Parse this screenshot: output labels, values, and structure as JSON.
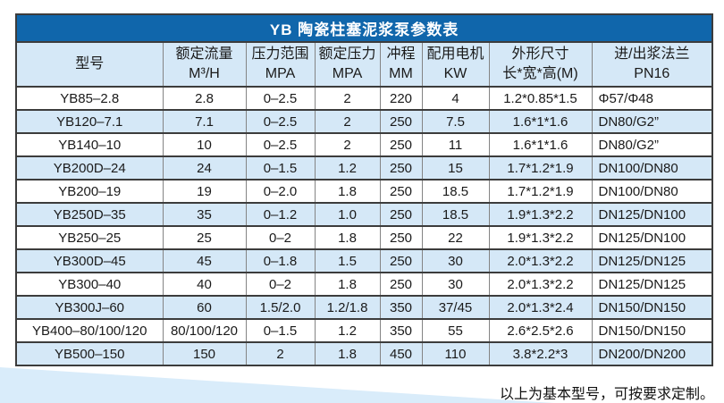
{
  "table": {
    "title": "YB 陶瓷柱塞泥浆泵参数表",
    "columns": [
      {
        "line1": "型号",
        "line2": ""
      },
      {
        "line1": "额定流量",
        "line2": "M³/H"
      },
      {
        "line1": "压力范围",
        "line2": "MPA"
      },
      {
        "line1": "额定压力",
        "line2": "MPA"
      },
      {
        "line1": "冲程",
        "line2": "MM"
      },
      {
        "line1": "配用电机",
        "line2": "KW"
      },
      {
        "line1": "外形尺寸",
        "line2": "长*宽*高(M)"
      },
      {
        "line1": "进/出浆法兰",
        "line2": "PN16"
      }
    ],
    "rows": [
      [
        "YB85–2.8",
        "2.8",
        "0–2.5",
        "2",
        "220",
        "4",
        "1.2*0.85*1.5",
        "Φ57/Φ48"
      ],
      [
        "YB120–7.1",
        "7.1",
        "0–2.5",
        "2",
        "250",
        "7.5",
        "1.6*1*1.6",
        "DN80/G2”"
      ],
      [
        "YB140–10",
        "10",
        "0–2.5",
        "2",
        "250",
        "11",
        "1.6*1*1.6",
        "DN80/G2”"
      ],
      [
        "YB200D–24",
        "24",
        "0–1.5",
        "1.2",
        "250",
        "15",
        "1.7*1.2*1.9",
        "DN100/DN80"
      ],
      [
        "YB200–19",
        "19",
        "0–2.0",
        "1.8",
        "250",
        "18.5",
        "1.7*1.2*1.9",
        "DN100/DN80"
      ],
      [
        "YB250D–35",
        "35",
        "0–1.2",
        "1.0",
        "250",
        "18.5",
        "1.9*1.3*2.2",
        "DN125/DN100"
      ],
      [
        "YB250–25",
        "25",
        "0–2",
        "1.8",
        "250",
        "22",
        "1.9*1.3*2.2",
        "DN125/DN100"
      ],
      [
        "YB300D–45",
        "45",
        "0–1.8",
        "1.5",
        "250",
        "30",
        "2.0*1.3*2.2",
        "DN125/DN125"
      ],
      [
        "YB300–40",
        "40",
        "0–2",
        "1.8",
        "250",
        "30",
        "2.0*1.3*2.2",
        "DN125/DN125"
      ],
      [
        "YB300J–60",
        "60",
        "1.5/2.0",
        "1.2/1.8",
        "350",
        "37/45",
        "2.0*1.3*2.4",
        "DN150/DN150"
      ],
      [
        "YB400–80/100/120",
        "80/100/120",
        "0–1.5",
        "1.2",
        "350",
        "55",
        "2.6*2.5*2.6",
        "DN150/DN150"
      ],
      [
        "YB500–150",
        "150",
        "2",
        "1.8",
        "450",
        "110",
        "3.8*2.2*3",
        "DN200/DN200"
      ]
    ]
  },
  "footer": {
    "note": "以上为基本型号，可按要求定制。"
  },
  "colors": {
    "title_bar_bg": "#1066ab",
    "header_row_bg": "#d5e8f7",
    "alt_row_bg": "#d5e8f7",
    "wedge": "#d9ecfa",
    "grid_horizontal": "#3c3c3c",
    "grid_vertical": "#848484",
    "title_text": "#ffffff",
    "body_text": "#1a1a1a"
  }
}
